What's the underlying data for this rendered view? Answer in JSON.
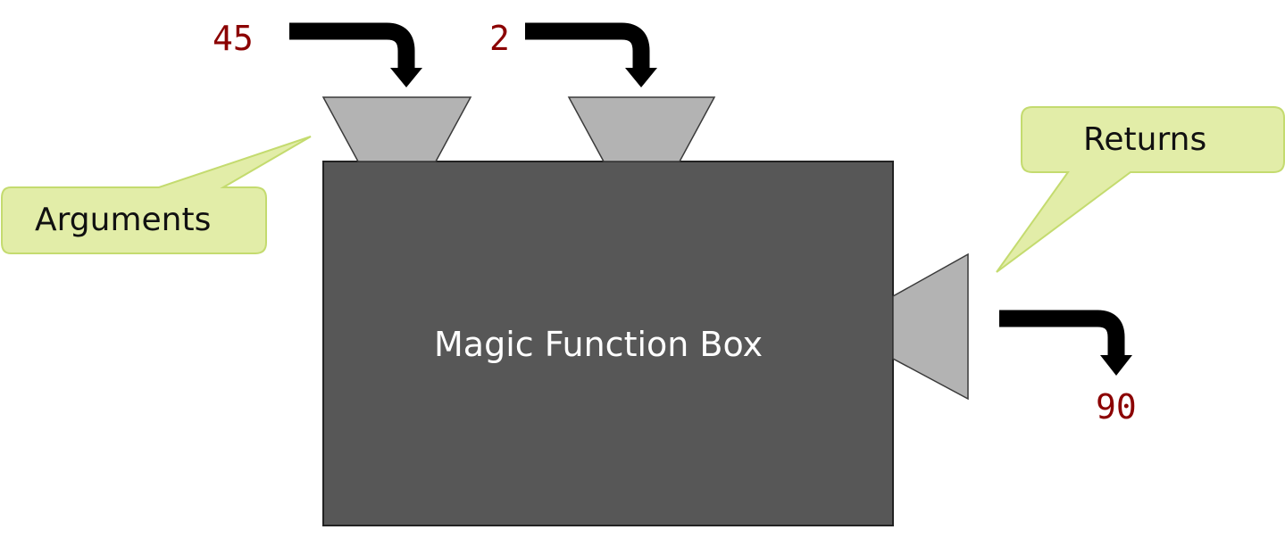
{
  "inputs": [
    {
      "value": "45"
    },
    {
      "value": "2"
    }
  ],
  "output": {
    "value": "90"
  },
  "box": {
    "label": "Magic Function Box"
  },
  "callouts": {
    "arguments": "Arguments",
    "returns": "Returns"
  },
  "colors": {
    "box_fill": "#575757",
    "funnel_fill": "#b3b3b3",
    "callout_fill": "#e2eda8",
    "callout_border": "#c4db6f",
    "arrow": "#000000",
    "value_text": "#8b0000"
  },
  "icons": {
    "arrow": "bent-arrow-down-icon"
  }
}
